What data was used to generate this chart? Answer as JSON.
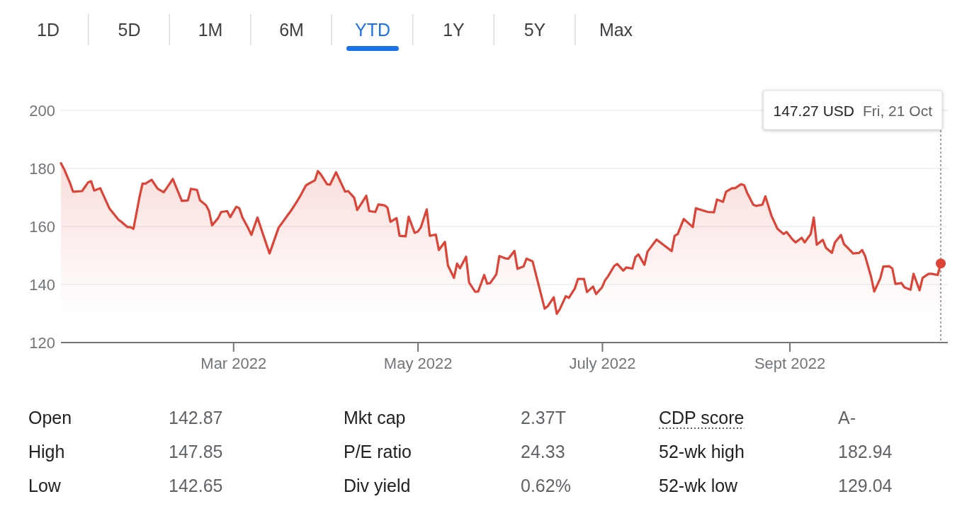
{
  "chart_data": {
    "type": "area",
    "color": "#db4437",
    "grid": "y",
    "xlim": [
      "2022-01-03",
      "2022-10-21"
    ],
    "ylim": [
      120,
      200
    ],
    "yticks": [
      120,
      140,
      160,
      180,
      200
    ],
    "xticks": [
      {
        "value": "2022-03-01",
        "label": "Mar 2022"
      },
      {
        "value": "2022-05-01",
        "label": "May 2022"
      },
      {
        "value": "2022-07-01",
        "label": "July 2022"
      },
      {
        "value": "2022-09-01",
        "label": "Sept 2022"
      }
    ],
    "x": [
      "2022-01-03",
      "2022-01-04",
      "2022-01-06",
      "2022-01-07",
      "2022-01-10",
      "2022-01-12",
      "2022-01-13",
      "2022-01-14",
      "2022-01-16",
      "2022-01-19",
      "2022-01-22",
      "2022-01-23",
      "2022-01-25",
      "2022-01-26",
      "2022-01-27",
      "2022-01-29",
      "2022-01-30",
      "2022-01-31",
      "2022-02-02",
      "2022-02-04",
      "2022-02-06",
      "2022-02-08",
      "2022-02-09",
      "2022-02-12",
      "2022-02-14",
      "2022-02-15",
      "2022-02-17",
      "2022-02-18",
      "2022-02-20",
      "2022-02-21",
      "2022-02-22",
      "2022-02-24",
      "2022-02-25",
      "2022-02-27",
      "2022-02-28",
      "2022-03-02",
      "2022-03-03",
      "2022-03-04",
      "2022-03-06",
      "2022-03-07",
      "2022-03-09",
      "2022-03-11",
      "2022-03-13",
      "2022-03-16",
      "2022-03-17",
      "2022-03-19",
      "2022-03-20",
      "2022-03-22",
      "2022-03-23",
      "2022-03-25",
      "2022-03-26",
      "2022-03-28",
      "2022-03-29",
      "2022-03-30",
      "2022-04-01",
      "2022-04-02",
      "2022-04-04",
      "2022-04-07",
      "2022-04-08",
      "2022-04-10",
      "2022-04-11",
      "2022-04-12",
      "2022-04-14",
      "2022-04-15",
      "2022-04-17",
      "2022-04-18",
      "2022-04-20",
      "2022-04-21",
      "2022-04-22",
      "2022-04-24",
      "2022-04-25",
      "2022-04-27",
      "2022-04-28",
      "2022-04-30",
      "2022-05-01",
      "2022-05-02",
      "2022-05-04",
      "2022-05-05",
      "2022-05-07",
      "2022-05-08",
      "2022-05-10",
      "2022-05-11",
      "2022-05-13",
      "2022-05-14",
      "2022-05-15",
      "2022-05-17",
      "2022-05-18",
      "2022-05-20",
      "2022-05-21",
      "2022-05-23",
      "2022-05-24",
      "2022-05-25",
      "2022-05-27",
      "2022-05-28",
      "2022-05-30",
      "2022-05-31",
      "2022-06-02",
      "2022-06-03",
      "2022-06-05",
      "2022-06-06",
      "2022-06-08",
      "2022-06-12",
      "2022-06-13",
      "2022-06-15",
      "2022-06-16",
      "2022-06-17",
      "2022-06-19",
      "2022-06-20",
      "2022-06-22",
      "2022-06-23",
      "2022-06-25",
      "2022-06-26",
      "2022-06-28",
      "2022-06-29",
      "2022-07-01",
      "2022-07-02",
      "2022-07-03",
      "2022-07-05",
      "2022-07-06",
      "2022-07-08",
      "2022-07-09",
      "2022-07-11",
      "2022-07-12",
      "2022-07-13",
      "2022-07-15",
      "2022-07-16",
      "2022-07-19",
      "2022-07-24",
      "2022-07-25",
      "2022-07-26",
      "2022-07-28",
      "2022-07-31",
      "2022-08-01",
      "2022-08-05",
      "2022-08-07",
      "2022-08-08",
      "2022-08-10",
      "2022-08-11",
      "2022-08-13",
      "2022-08-14",
      "2022-08-16",
      "2022-08-17",
      "2022-08-18",
      "2022-08-20",
      "2022-08-21",
      "2022-08-23",
      "2022-08-24",
      "2022-08-26",
      "2022-08-28",
      "2022-08-30",
      "2022-08-31",
      "2022-09-02",
      "2022-09-03",
      "2022-09-05",
      "2022-09-06",
      "2022-09-08",
      "2022-09-09",
      "2022-09-10",
      "2022-09-12",
      "2022-09-13",
      "2022-09-15",
      "2022-09-16",
      "2022-09-18",
      "2022-09-19",
      "2022-09-20",
      "2022-09-22",
      "2022-09-24",
      "2022-09-25",
      "2022-09-26",
      "2022-09-28",
      "2022-09-29",
      "2022-10-01",
      "2022-10-02",
      "2022-10-04",
      "2022-10-05",
      "2022-10-06",
      "2022-10-08",
      "2022-10-09",
      "2022-10-11",
      "2022-10-12",
      "2022-10-14",
      "2022-10-15",
      "2022-10-17",
      "2022-10-18",
      "2022-10-20",
      "2022-10-21"
    ],
    "values": [
      181.8,
      179.9,
      175.0,
      172.0,
      172.2,
      175.2,
      175.6,
      172.4,
      173.2,
      166.3,
      162.4,
      161.6,
      159.8,
      159.8,
      159.2,
      170.2,
      174.8,
      174.8,
      176.1,
      173.0,
      171.8,
      174.8,
      176.4,
      168.8,
      169.0,
      173.0,
      172.6,
      169.0,
      167.3,
      165.3,
      160.4,
      162.9,
      165.0,
      165.3,
      163.2,
      166.8,
      166.3,
      163.2,
      159.3,
      157.1,
      163.1,
      156.8,
      150.7,
      159.6,
      161.0,
      163.9,
      165.3,
      168.5,
      170.2,
      174.1,
      174.8,
      175.9,
      179.1,
      177.9,
      174.6,
      174.4,
      178.7,
      172.0,
      172.2,
      169.9,
      165.7,
      167.3,
      170.6,
      165.3,
      165.0,
      167.6,
      167.3,
      166.5,
      161.6,
      162.9,
      156.8,
      156.6,
      163.4,
      157.8,
      158.2,
      159.6,
      165.9,
      156.8,
      157.2,
      151.9,
      154.7,
      146.6,
      142.3,
      147.2,
      145.6,
      149.6,
      140.7,
      137.5,
      137.6,
      143.3,
      140.3,
      140.5,
      143.5,
      149.8,
      149.0,
      148.9,
      151.6,
      145.4,
      146.2,
      148.9,
      148.0,
      131.7,
      132.5,
      135.6,
      129.9,
      131.5,
      136.0,
      135.4,
      138.7,
      141.9,
      141.9,
      137.4,
      139.3,
      136.7,
      139.1,
      141.5,
      142.9,
      146.4,
      147.1,
      144.8,
      145.9,
      145.5,
      149.4,
      150.4,
      146.8,
      151.3,
      155.5,
      151.5,
      156.8,
      157.4,
      162.6,
      159.8,
      166.3,
      165.0,
      164.9,
      169.3,
      168.5,
      172.0,
      173.2,
      173.2,
      174.6,
      174.2,
      171.5,
      167.5,
      167.1,
      167.5,
      170.4,
      163.7,
      159.2,
      157.4,
      158.1,
      155.5,
      154.5,
      156.1,
      154.5,
      157.4,
      163.1,
      153.7,
      155.4,
      152.7,
      150.9,
      154.5,
      157.1,
      153.9,
      152.9,
      150.7,
      150.9,
      151.9,
      149.8,
      142.5,
      137.6,
      142.1,
      146.2,
      146.3,
      145.5,
      140.2,
      140.5,
      139.0,
      138.2,
      143.7,
      138.0,
      142.3,
      143.7,
      143.7,
      143.3,
      147.27
    ],
    "annotations": [
      "1D",
      "5D",
      "1M",
      "6M",
      "YTD",
      "1Y",
      "5Y",
      "Max",
      "Open",
      "142.87",
      "Mkt cap",
      "2.37T",
      "CDP score",
      "A-",
      "High",
      "147.85",
      "P/E ratio",
      "24.33",
      "52-wk high",
      "182.94",
      "Low",
      "142.65",
      "Div yield",
      "0.62%",
      "52-wk low",
      "129.04",
      "147.27 USD",
      "Fri, 21 Oct"
    ]
  }
}
